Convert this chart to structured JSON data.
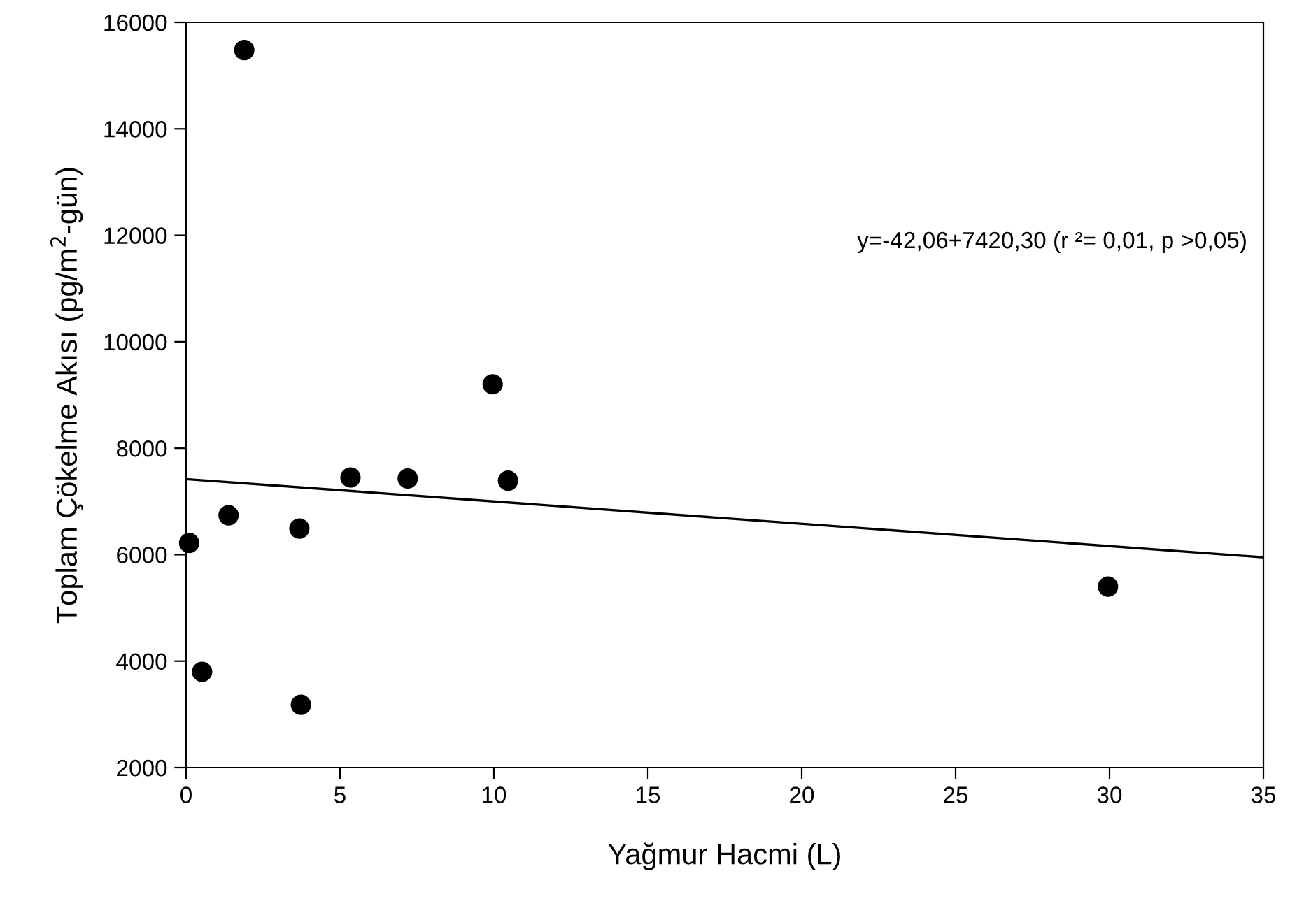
{
  "chart_data": {
    "type": "scatter",
    "xlabel": "Yağmur Hacmi (L)",
    "ylabel": "Toplam Çökelme Akısı (pg/m$^{2}$-gün)",
    "xlim": [
      0,
      35
    ],
    "xticks": [
      0,
      5,
      10,
      15,
      20,
      25,
      30,
      35
    ],
    "ylim": [
      2000,
      16000
    ],
    "yticks": [
      2000,
      4000,
      6000,
      8000,
      10000,
      12000,
      14000,
      16000
    ],
    "grid": false,
    "legend": false,
    "marker": "circle",
    "series": [
      {
        "color": "#000000",
        "x": [
          0.1,
          0.52,
          1.38,
          1.89,
          3.68,
          3.73,
          5.34,
          7.2,
          9.96,
          10.46,
          29.95
        ],
        "values": [
          6220,
          3800,
          6740,
          15480,
          6490,
          3180,
          7450,
          7430,
          9200,
          7390,
          5400
        ]
      },
      {
        "type": "line",
        "color": "#000000",
        "marker": "none",
        "line_style": "solid",
        "x": [
          0,
          35
        ],
        "values": [
          7420,
          5950
        ]
      }
    ],
    "annotations": [
      "y=-42,06+7420,30 (r ²= 0,01, p >0,05)"
    ]
  }
}
